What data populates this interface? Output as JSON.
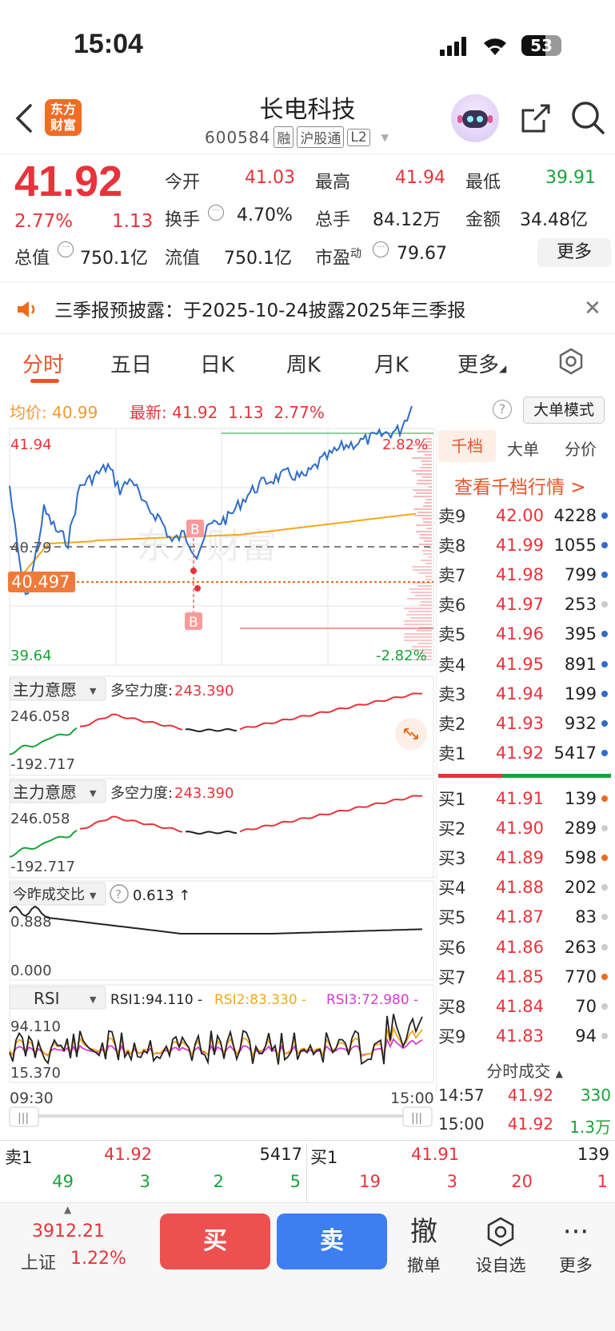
{
  "status": {
    "time": "15:04",
    "battery": "53"
  },
  "header": {
    "logo_line1": "东方",
    "logo_line2": "财富",
    "name": "长电科技",
    "code": "600584",
    "tags": [
      "融",
      "沪股通",
      "L2"
    ]
  },
  "quote": {
    "price": "41.92",
    "change_pct": "2.77%",
    "change": "1.13",
    "open_label": "今开",
    "open": "41.03",
    "high_label": "最高",
    "high": "41.94",
    "low_label": "最低",
    "low": "39.91",
    "turnover_label": "换手",
    "turnover": "4.70%",
    "volume_label": "总手",
    "volume": "84.12万",
    "amount_label": "金额",
    "amount": "34.48亿",
    "mktcap_label": "总值",
    "mktcap": "750.1亿",
    "float_label": "流值",
    "float": "750.1亿",
    "pe_label": "市盈",
    "pe_sup": "动",
    "pe": "79.67",
    "more": "更多"
  },
  "notice": {
    "text": "三季报预披露：于2025-10-24披露2025年三季报"
  },
  "tabs": [
    "分时",
    "五日",
    "日K",
    "周K",
    "月K",
    "更多"
  ],
  "infobar": {
    "avg_label": "均价:",
    "avg": "40.99",
    "latest_label": "最新:",
    "latest": "41.92",
    "chg": "1.13",
    "pct": "2.77%",
    "mode_btn": "大单模式"
  },
  "chart": {
    "y_top": "41.94",
    "y_mid": "40.79",
    "y_bottom": "39.64",
    "pct_top": "2.82%",
    "pct_bottom": "-2.82%",
    "cursor_price": "40.497",
    "marker_b": "B",
    "watermark": "东方财富",
    "time_start": "09:30",
    "time_end": "15:00",
    "ind1_name": "主力意愿",
    "ind1_label": "多空力度:",
    "ind1_value": "243.390",
    "ind1_top": "246.058",
    "ind1_bottom": "-192.717",
    "ind2_name": "主力意愿",
    "ind2_label": "多空力度:",
    "ind2_value": "243.390",
    "ind2_top": "246.058",
    "ind2_bottom": "-192.717",
    "ind3_name": "今昨成交比",
    "ind3_value": "0.613 ↑",
    "ind3_top": "0.888",
    "ind3_bottom": "0.000",
    "rsi_name": "RSI",
    "rsi1": "RSI1:94.110 -",
    "rsi2": "RSI2:83.330 -",
    "rsi3": "RSI3:72.980 -",
    "rsi_top": "94.110",
    "rsi_bottom": "15.370",
    "scroll_grip": "|||",
    "colors": {
      "price": "#2f6dc7",
      "avg": "#f2a71b",
      "up": "#e8333a",
      "down": "#1aa33a",
      "rsi3": "#d63ad1"
    }
  },
  "book": {
    "tabs": [
      "千档",
      "大单",
      "分价"
    ],
    "link": "查看千档行情 >",
    "asks": [
      {
        "label": "卖9",
        "price": "42.00",
        "vol": "4228",
        "dot": "#2f6dc7"
      },
      {
        "label": "卖8",
        "price": "41.99",
        "vol": "1055",
        "dot": "#2f6dc7"
      },
      {
        "label": "卖7",
        "price": "41.98",
        "vol": "799",
        "dot": "#2f6dc7"
      },
      {
        "label": "卖6",
        "price": "41.97",
        "vol": "253",
        "dot": "#cccccc"
      },
      {
        "label": "卖5",
        "price": "41.96",
        "vol": "395",
        "dot": "#2f6dc7"
      },
      {
        "label": "卖4",
        "price": "41.95",
        "vol": "891",
        "dot": "#2f6dc7"
      },
      {
        "label": "卖3",
        "price": "41.94",
        "vol": "199",
        "dot": "#2f6dc7"
      },
      {
        "label": "卖2",
        "price": "41.93",
        "vol": "932",
        "dot": "#2f6dc7"
      },
      {
        "label": "卖1",
        "price": "41.92",
        "vol": "5417",
        "dot": "#2f6dc7"
      }
    ],
    "bids": [
      {
        "label": "买1",
        "price": "41.91",
        "vol": "139",
        "dot": "#f06a1b"
      },
      {
        "label": "买2",
        "price": "41.90",
        "vol": "289",
        "dot": "#cccccc"
      },
      {
        "label": "买3",
        "price": "41.89",
        "vol": "598",
        "dot": "#f06a1b"
      },
      {
        "label": "买4",
        "price": "41.88",
        "vol": "202",
        "dot": "#cccccc"
      },
      {
        "label": "买5",
        "price": "41.87",
        "vol": "83",
        "dot": "#cccccc"
      },
      {
        "label": "买6",
        "price": "41.86",
        "vol": "263",
        "dot": "#cccccc"
      },
      {
        "label": "买7",
        "price": "41.85",
        "vol": "770",
        "dot": "#f06a1b"
      },
      {
        "label": "买8",
        "price": "41.84",
        "vol": "70",
        "dot": "#cccccc"
      },
      {
        "label": "买9",
        "price": "41.83",
        "vol": "94",
        "dot": "#cccccc"
      }
    ],
    "trades_title": "分时成交",
    "trades": [
      {
        "time": "14:57",
        "price": "41.92",
        "vol": "330"
      },
      {
        "time": "15:00",
        "price": "41.92",
        "vol": "1.3万"
      }
    ]
  },
  "level1": {
    "ask_label": "卖1",
    "ask_price": "41.92",
    "ask_vol": "5417",
    "bid_label": "买1",
    "bid_price": "41.91",
    "bid_vol": "139",
    "ask_details": [
      "49",
      "3",
      "2",
      "5"
    ],
    "bid_details": [
      "19",
      "3",
      "20",
      "1"
    ]
  },
  "bottom": {
    "index_value": "3912.21",
    "index_name": "上证",
    "index_pct": "1.22%",
    "buy": "买",
    "sell": "卖",
    "tool1_icon": "撤",
    "tool1": "撤单",
    "tool2": "设自选",
    "tool3": "更多"
  }
}
